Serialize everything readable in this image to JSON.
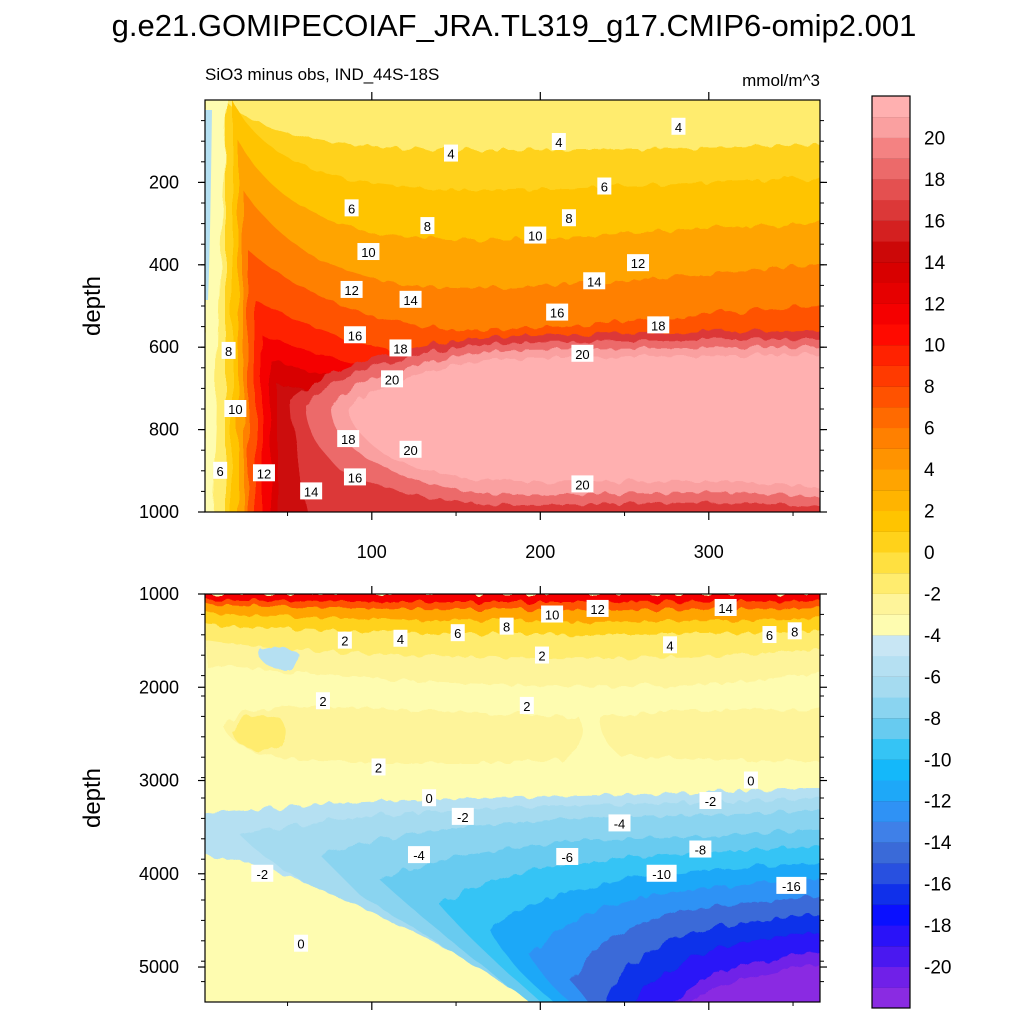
{
  "title": "g.e21.GOMIPECOIAF_JRA.TL319_g17.CMIP6-omip2.001",
  "subtitle_left": "SiO3 minus obs, IND_44S-18S",
  "units": "mmol/m^3",
  "chart_data": [
    {
      "type": "heatmap",
      "panel": "top",
      "xlabel": "",
      "ylabel": "depth",
      "xlim": [
        1,
        366
      ],
      "ylim": [
        0,
        1000
      ],
      "y_inverted": true,
      "x_ticks": [
        100,
        200,
        300
      ],
      "x_ticklabels": [
        "100",
        "200",
        "300"
      ],
      "y_ticks": [
        200,
        400,
        600,
        800,
        1000
      ],
      "y_ticklabels": [
        "200",
        "400",
        "600",
        "800",
        "1000"
      ],
      "contour_labels": [
        {
          "x": 147,
          "y": 130,
          "text": "4"
        },
        {
          "x": 211,
          "y": 102,
          "text": "4"
        },
        {
          "x": 282,
          "y": 65,
          "text": "4"
        },
        {
          "x": 88,
          "y": 263,
          "text": "6"
        },
        {
          "x": 238,
          "y": 210,
          "text": "6"
        },
        {
          "x": 133,
          "y": 306,
          "text": "8"
        },
        {
          "x": 217,
          "y": 287,
          "text": "8"
        },
        {
          "x": 98,
          "y": 369,
          "text": "10"
        },
        {
          "x": 197,
          "y": 329,
          "text": "10"
        },
        {
          "x": 258,
          "y": 396,
          "text": "12"
        },
        {
          "x": 88,
          "y": 461,
          "text": "12"
        },
        {
          "x": 123,
          "y": 485,
          "text": "14"
        },
        {
          "x": 232,
          "y": 440,
          "text": "14"
        },
        {
          "x": 210,
          "y": 516,
          "text": "16"
        },
        {
          "x": 270,
          "y": 547,
          "text": "18"
        },
        {
          "x": 90,
          "y": 571,
          "text": "16"
        },
        {
          "x": 117,
          "y": 603,
          "text": "18"
        },
        {
          "x": 225,
          "y": 616,
          "text": "20"
        },
        {
          "x": 15,
          "y": 609,
          "text": "8"
        },
        {
          "x": 112,
          "y": 678,
          "text": "20"
        },
        {
          "x": 19,
          "y": 750,
          "text": "10"
        },
        {
          "x": 86,
          "y": 823,
          "text": "18"
        },
        {
          "x": 123,
          "y": 849,
          "text": "20"
        },
        {
          "x": 10,
          "y": 900,
          "text": "6"
        },
        {
          "x": 36,
          "y": 906,
          "text": "12"
        },
        {
          "x": 90,
          "y": 916,
          "text": "16"
        },
        {
          "x": 225,
          "y": 933,
          "text": "20"
        },
        {
          "x": 64,
          "y": 950,
          "text": "14"
        }
      ]
    },
    {
      "type": "heatmap",
      "panel": "bottom",
      "xlabel": "",
      "ylabel": "depth",
      "xlim": [
        1,
        366
      ],
      "ylim": [
        1000,
        5375
      ],
      "y_inverted": true,
      "x_ticks": [
        100,
        200,
        300
      ],
      "x_ticklabels": [],
      "y_ticks": [
        1000,
        2000,
        3000,
        4000,
        5000
      ],
      "y_ticklabels": [
        "1000",
        "2000",
        "3000",
        "4000",
        "5000"
      ],
      "contour_labels": [
        {
          "x": 207,
          "y": 1220,
          "text": "10"
        },
        {
          "x": 234,
          "y": 1160,
          "text": "12"
        },
        {
          "x": 310,
          "y": 1150,
          "text": "14"
        },
        {
          "x": 84,
          "y": 1500,
          "text": "2"
        },
        {
          "x": 117,
          "y": 1480,
          "text": "4"
        },
        {
          "x": 151,
          "y": 1420,
          "text": "6"
        },
        {
          "x": 180,
          "y": 1350,
          "text": "8"
        },
        {
          "x": 336,
          "y": 1440,
          "text": "6"
        },
        {
          "x": 351,
          "y": 1400,
          "text": "8"
        },
        {
          "x": 277,
          "y": 1550,
          "text": "4"
        },
        {
          "x": 201,
          "y": 1660,
          "text": "2"
        },
        {
          "x": 71,
          "y": 2150,
          "text": "2"
        },
        {
          "x": 192,
          "y": 2200,
          "text": "2"
        },
        {
          "x": 104,
          "y": 2860,
          "text": "2"
        },
        {
          "x": 134,
          "y": 3190,
          "text": "0"
        },
        {
          "x": 325,
          "y": 3000,
          "text": "0"
        },
        {
          "x": 154,
          "y": 3390,
          "text": "-2"
        },
        {
          "x": 301,
          "y": 3220,
          "text": "-2"
        },
        {
          "x": 247,
          "y": 3460,
          "text": "-4"
        },
        {
          "x": 128,
          "y": 3800,
          "text": "-4"
        },
        {
          "x": 216,
          "y": 3820,
          "text": "-6"
        },
        {
          "x": 295,
          "y": 3740,
          "text": "-8"
        },
        {
          "x": 272,
          "y": 4000,
          "text": "-10"
        },
        {
          "x": 349,
          "y": 4130,
          "text": "-16"
        },
        {
          "x": 35,
          "y": 4000,
          "text": "-2"
        },
        {
          "x": 58,
          "y": 4750,
          "text": "0"
        }
      ]
    }
  ],
  "colorbar": {
    "levels": [
      -22,
      -20,
      -18,
      -16,
      -14,
      -12,
      -10,
      -8,
      -6,
      -4,
      -2,
      0,
      2,
      4,
      6,
      8,
      10,
      12,
      14,
      16,
      18,
      20,
      22
    ],
    "sub_levels": 44,
    "tick_labels": [
      "-20",
      "-18",
      "-16",
      "-14",
      "-12",
      "-10",
      "-8",
      "-6",
      "-4",
      "-2",
      "0",
      "2",
      "4",
      "6",
      "8",
      "10",
      "12",
      "14",
      "16",
      "18",
      "20"
    ],
    "colors": [
      "#8a2be2",
      "#7020e8",
      "#4a18f0",
      "#2a12f8",
      "#0a10ff",
      "#1030ea",
      "#2850e0",
      "#3a6ad8",
      "#3f80e8",
      "#2f92f5",
      "#1ea8f8",
      "#14b8fa",
      "#35c4f5",
      "#67cbf0",
      "#8ad4f0",
      "#a5dbf0",
      "#b5e0f2",
      "#c8e6f4",
      "#fefcb0",
      "#fef49a",
      "#ffec6e",
      "#ffe040",
      "#ffd21a",
      "#ffc400",
      "#ffb400",
      "#ffa400",
      "#ff9300",
      "#ff8000",
      "#ff6a00",
      "#ff5200",
      "#ff3a00",
      "#ff2200",
      "#ff0a00",
      "#f50000",
      "#e60000",
      "#d80000",
      "#cc0808",
      "#d42020",
      "#dc3838",
      "#e45050",
      "#ec6a6a",
      "#f48282",
      "#faa0a0",
      "#ffb0b0"
    ]
  }
}
